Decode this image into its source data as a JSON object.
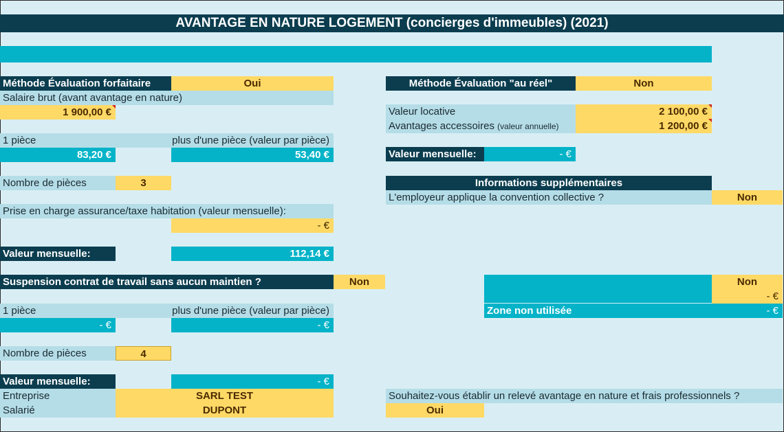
{
  "title": "AVANTAGE EN NATURE LOGEMENT (concierges d'immeubles) (2021)",
  "left": {
    "forfait_label": "Méthode Évaluation forfaitaire",
    "forfait_value": "Oui",
    "salaire_label": "Salaire brut (avant avantage en nature)",
    "salaire_value": "1 900,00 €",
    "une_piece_label": "1 pièce",
    "plus_piece_label": "plus d'une pièce (valeur par pièce)",
    "une_piece_value": "83,20 €",
    "plus_piece_value": "53,40 €",
    "nb_pieces_label": "Nombre de pièces",
    "nb_pieces_value": "3",
    "assurance_label": "Prise en charge assurance/taxe habitation (valeur mensuelle):",
    "assurance_value": "-    €",
    "valeur_mensuelle_label": "Valeur mensuelle:",
    "valeur_mensuelle_value": "112,14 €",
    "suspension_label": "Suspension contrat de travail sans aucun maintien ?",
    "suspension_value": "Non",
    "une_piece2_label": "1 pièce",
    "plus_piece2_label": "plus d'une pièce (valeur par pièce)",
    "une_piece2_value": "-    €",
    "plus_piece2_value": "-    €",
    "nb_pieces2_label": "Nombre de pièces",
    "nb_pieces2_value": "4",
    "valeur_mensuelle2_label": "Valeur mensuelle:",
    "valeur_mensuelle2_value": "-    €",
    "entreprise_label": "Entreprise",
    "entreprise_value": "SARL TEST",
    "salarie_label": "Salarié",
    "salarie_value": "DUPONT"
  },
  "right": {
    "reel_label": "Méthode Évaluation \"au réel\"",
    "reel_value": "Non",
    "valeur_locative_label": "Valeur locative",
    "valeur_locative_value": "2 100,00 €",
    "avantages_label": "Avantages accessoires",
    "avantages_sub": "(valeur annuelle)",
    "avantages_value": "1 200,00 €",
    "valeur_mensuelle_label": "Valeur mensuelle:",
    "valeur_mensuelle_value": "-    €",
    "info_header": "Informations supplémentaires",
    "convention_label": "L'employeur applique la convention collective ?",
    "convention_value": "Non",
    "zone_top_value": "Non",
    "zone_mid_value": "-    €",
    "zone_label": "Zone non utilisée",
    "zone_value": "-    €",
    "releve_label": "Souhaitez-vous établir un relevé avantage en nature et frais professionnels ?",
    "releve_value": "Oui"
  },
  "colors": {
    "dark": "#0b3d4f",
    "teal": "#04b3c8",
    "light": "#b5dde8",
    "yellow": "#ffd966",
    "background": "#d9eef4"
  }
}
